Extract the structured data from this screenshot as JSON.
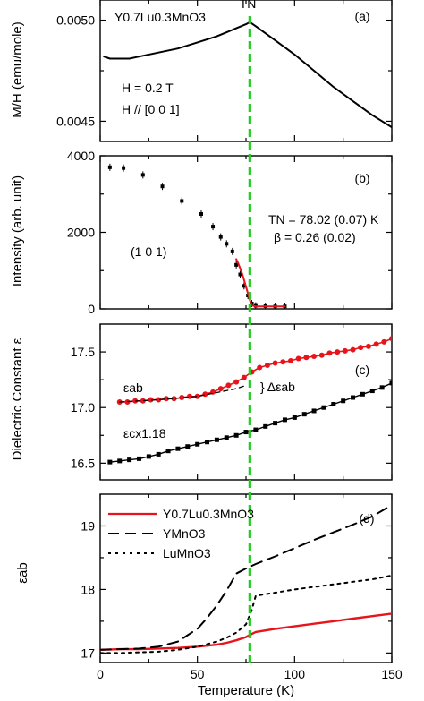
{
  "chart_data": [
    {
      "type": "line",
      "panel_label": "(a)",
      "ylabel": "M/H (emu/mole)",
      "xlim": [
        0,
        150
      ],
      "ylim": [
        0.0044,
        0.0051
      ],
      "yticks": [
        0.0045,
        0.005
      ],
      "ytick_labels": [
        "0.0045",
        "0.0050"
      ],
      "annotations": [
        "Y0.7Lu0.3MnO3",
        "H = 0.2 T",
        "H // [0 0 1]"
      ],
      "tn_label": "TN",
      "series": [
        {
          "color": "#000000",
          "x": [
            2,
            5,
            10,
            15,
            20,
            30,
            40,
            50,
            60,
            70,
            75,
            77,
            80,
            90,
            100,
            110,
            120,
            130,
            140,
            150
          ],
          "y": [
            0.00482,
            0.00481,
            0.00481,
            0.00481,
            0.00482,
            0.00484,
            0.00486,
            0.00489,
            0.00492,
            0.00496,
            0.00498,
            0.00499,
            0.00497,
            0.0049,
            0.00483,
            0.00475,
            0.00467,
            0.0046,
            0.00453,
            0.00447
          ]
        }
      ]
    },
    {
      "type": "scatter",
      "panel_label": "(b)",
      "ylabel": "Intensity (arb. unit)",
      "xlim": [
        0,
        150
      ],
      "ylim": [
        0,
        4000
      ],
      "yticks": [
        0,
        2000,
        4000
      ],
      "ytick_labels": [
        "0",
        "2000",
        "4000"
      ],
      "annotations": [
        "(1 0 1)",
        "TN = 78.02 (0.07) K",
        "β = 0.26 (0.02)"
      ],
      "series": [
        {
          "color": "#000000",
          "x": [
            5,
            12,
            22,
            32,
            42,
            52,
            58,
            62,
            65,
            68,
            70,
            72,
            74,
            76,
            78,
            80,
            85,
            90,
            95
          ],
          "y": [
            3700,
            3680,
            3500,
            3200,
            2820,
            2480,
            2150,
            1880,
            1700,
            1500,
            1150,
            900,
            600,
            350,
            140,
            80,
            70,
            65,
            65
          ]
        },
        {
          "color": "#e8141b",
          "x": [
            70,
            71,
            72,
            73,
            74,
            75,
            76,
            77,
            78,
            80,
            85,
            95
          ],
          "y": [
            1300,
            1190,
            1060,
            920,
            760,
            580,
            400,
            230,
            90,
            65,
            65,
            65
          ]
        }
      ]
    },
    {
      "type": "scatter",
      "panel_label": "(c)",
      "ylabel": "Dielectric Constant ε",
      "xlim": [
        0,
        150
      ],
      "ylim": [
        16.35,
        17.75
      ],
      "yticks": [
        16.5,
        17.0,
        17.5
      ],
      "ytick_labels": [
        "16.5",
        "17.0",
        "17.5"
      ],
      "annotations": [
        "εab",
        "εcx1.18",
        "} Δεab"
      ],
      "series": [
        {
          "color": "#e8141b",
          "x": [
            10,
            14,
            18,
            22,
            26,
            30,
            34,
            38,
            42,
            46,
            50,
            54,
            58,
            62,
            66,
            70,
            74,
            78,
            82,
            86,
            90,
            94,
            98,
            102,
            106,
            110,
            114,
            118,
            122,
            126,
            130,
            134,
            138,
            142,
            146,
            150
          ],
          "y": [
            17.05,
            17.05,
            17.06,
            17.06,
            17.07,
            17.07,
            17.08,
            17.08,
            17.09,
            17.1,
            17.1,
            17.12,
            17.14,
            17.17,
            17.2,
            17.23,
            17.27,
            17.32,
            17.36,
            17.38,
            17.4,
            17.41,
            17.42,
            17.44,
            17.45,
            17.46,
            17.47,
            17.49,
            17.5,
            17.51,
            17.52,
            17.54,
            17.55,
            17.57,
            17.59,
            17.62
          ]
        },
        {
          "color": "#000000",
          "x": [
            5,
            10,
            15,
            20,
            25,
            30,
            35,
            40,
            45,
            50,
            55,
            60,
            65,
            70,
            75,
            80,
            85,
            90,
            95,
            100,
            105,
            110,
            115,
            120,
            125,
            130,
            135,
            140,
            145,
            150
          ],
          "y": [
            16.51,
            16.52,
            16.53,
            16.54,
            16.56,
            16.58,
            16.61,
            16.63,
            16.65,
            16.67,
            16.69,
            16.71,
            16.73,
            16.75,
            16.78,
            16.8,
            16.83,
            16.86,
            16.89,
            16.91,
            16.94,
            16.97,
            17.0,
            17.03,
            17.06,
            17.09,
            17.12,
            17.15,
            17.18,
            17.22
          ]
        },
        {
          "color": "#000000",
          "x": [
            10,
            30,
            50,
            70,
            75
          ],
          "y": [
            17.05,
            17.07,
            17.1,
            17.17,
            17.2
          ]
        }
      ]
    },
    {
      "type": "line",
      "panel_label": "(d)",
      "ylabel": "εab",
      "xlabel": "Temperature (K)",
      "xlim": [
        0,
        150
      ],
      "ylim": [
        16.85,
        19.5
      ],
      "xticks": [
        0,
        50,
        100,
        150
      ],
      "xtick_labels": [
        "0",
        "50",
        "100",
        "150"
      ],
      "yticks": [
        17,
        18,
        19
      ],
      "ytick_labels": [
        "17",
        "18",
        "19"
      ],
      "legend_position": "top-left",
      "series": [
        {
          "name": "Y0.7Lu0.3MnO3",
          "color": "#e8141b",
          "x": [
            0,
            10,
            20,
            30,
            40,
            50,
            60,
            65,
            70,
            75,
            78,
            80,
            90,
            100,
            110,
            120,
            130,
            140,
            150
          ],
          "y": [
            17.05,
            17.06,
            17.06,
            17.07,
            17.08,
            17.1,
            17.13,
            17.16,
            17.2,
            17.25,
            17.3,
            17.33,
            17.38,
            17.42,
            17.46,
            17.5,
            17.54,
            17.58,
            17.62
          ]
        },
        {
          "name": "YMnO3",
          "color": "#000000",
          "x": [
            0,
            10,
            20,
            30,
            40,
            50,
            55,
            60,
            65,
            70,
            75,
            80,
            90,
            100,
            110,
            120,
            130,
            140,
            150
          ],
          "y": [
            17.05,
            17.06,
            17.07,
            17.1,
            17.18,
            17.38,
            17.55,
            17.75,
            17.98,
            18.25,
            18.33,
            18.4,
            18.52,
            18.65,
            18.78,
            18.9,
            19.02,
            19.15,
            19.33
          ]
        },
        {
          "name": "LuMnO3",
          "color": "#000000",
          "x": [
            0,
            10,
            20,
            30,
            40,
            50,
            60,
            65,
            70,
            75,
            78,
            80,
            90,
            100,
            110,
            120,
            130,
            140,
            150
          ],
          "y": [
            17.0,
            17.0,
            17.01,
            17.02,
            17.05,
            17.1,
            17.18,
            17.24,
            17.32,
            17.45,
            17.68,
            17.9,
            17.95,
            18.0,
            18.04,
            18.08,
            18.12,
            18.16,
            18.22
          ]
        }
      ]
    }
  ],
  "tn_line": {
    "x": 77,
    "color": "#22cc22"
  }
}
